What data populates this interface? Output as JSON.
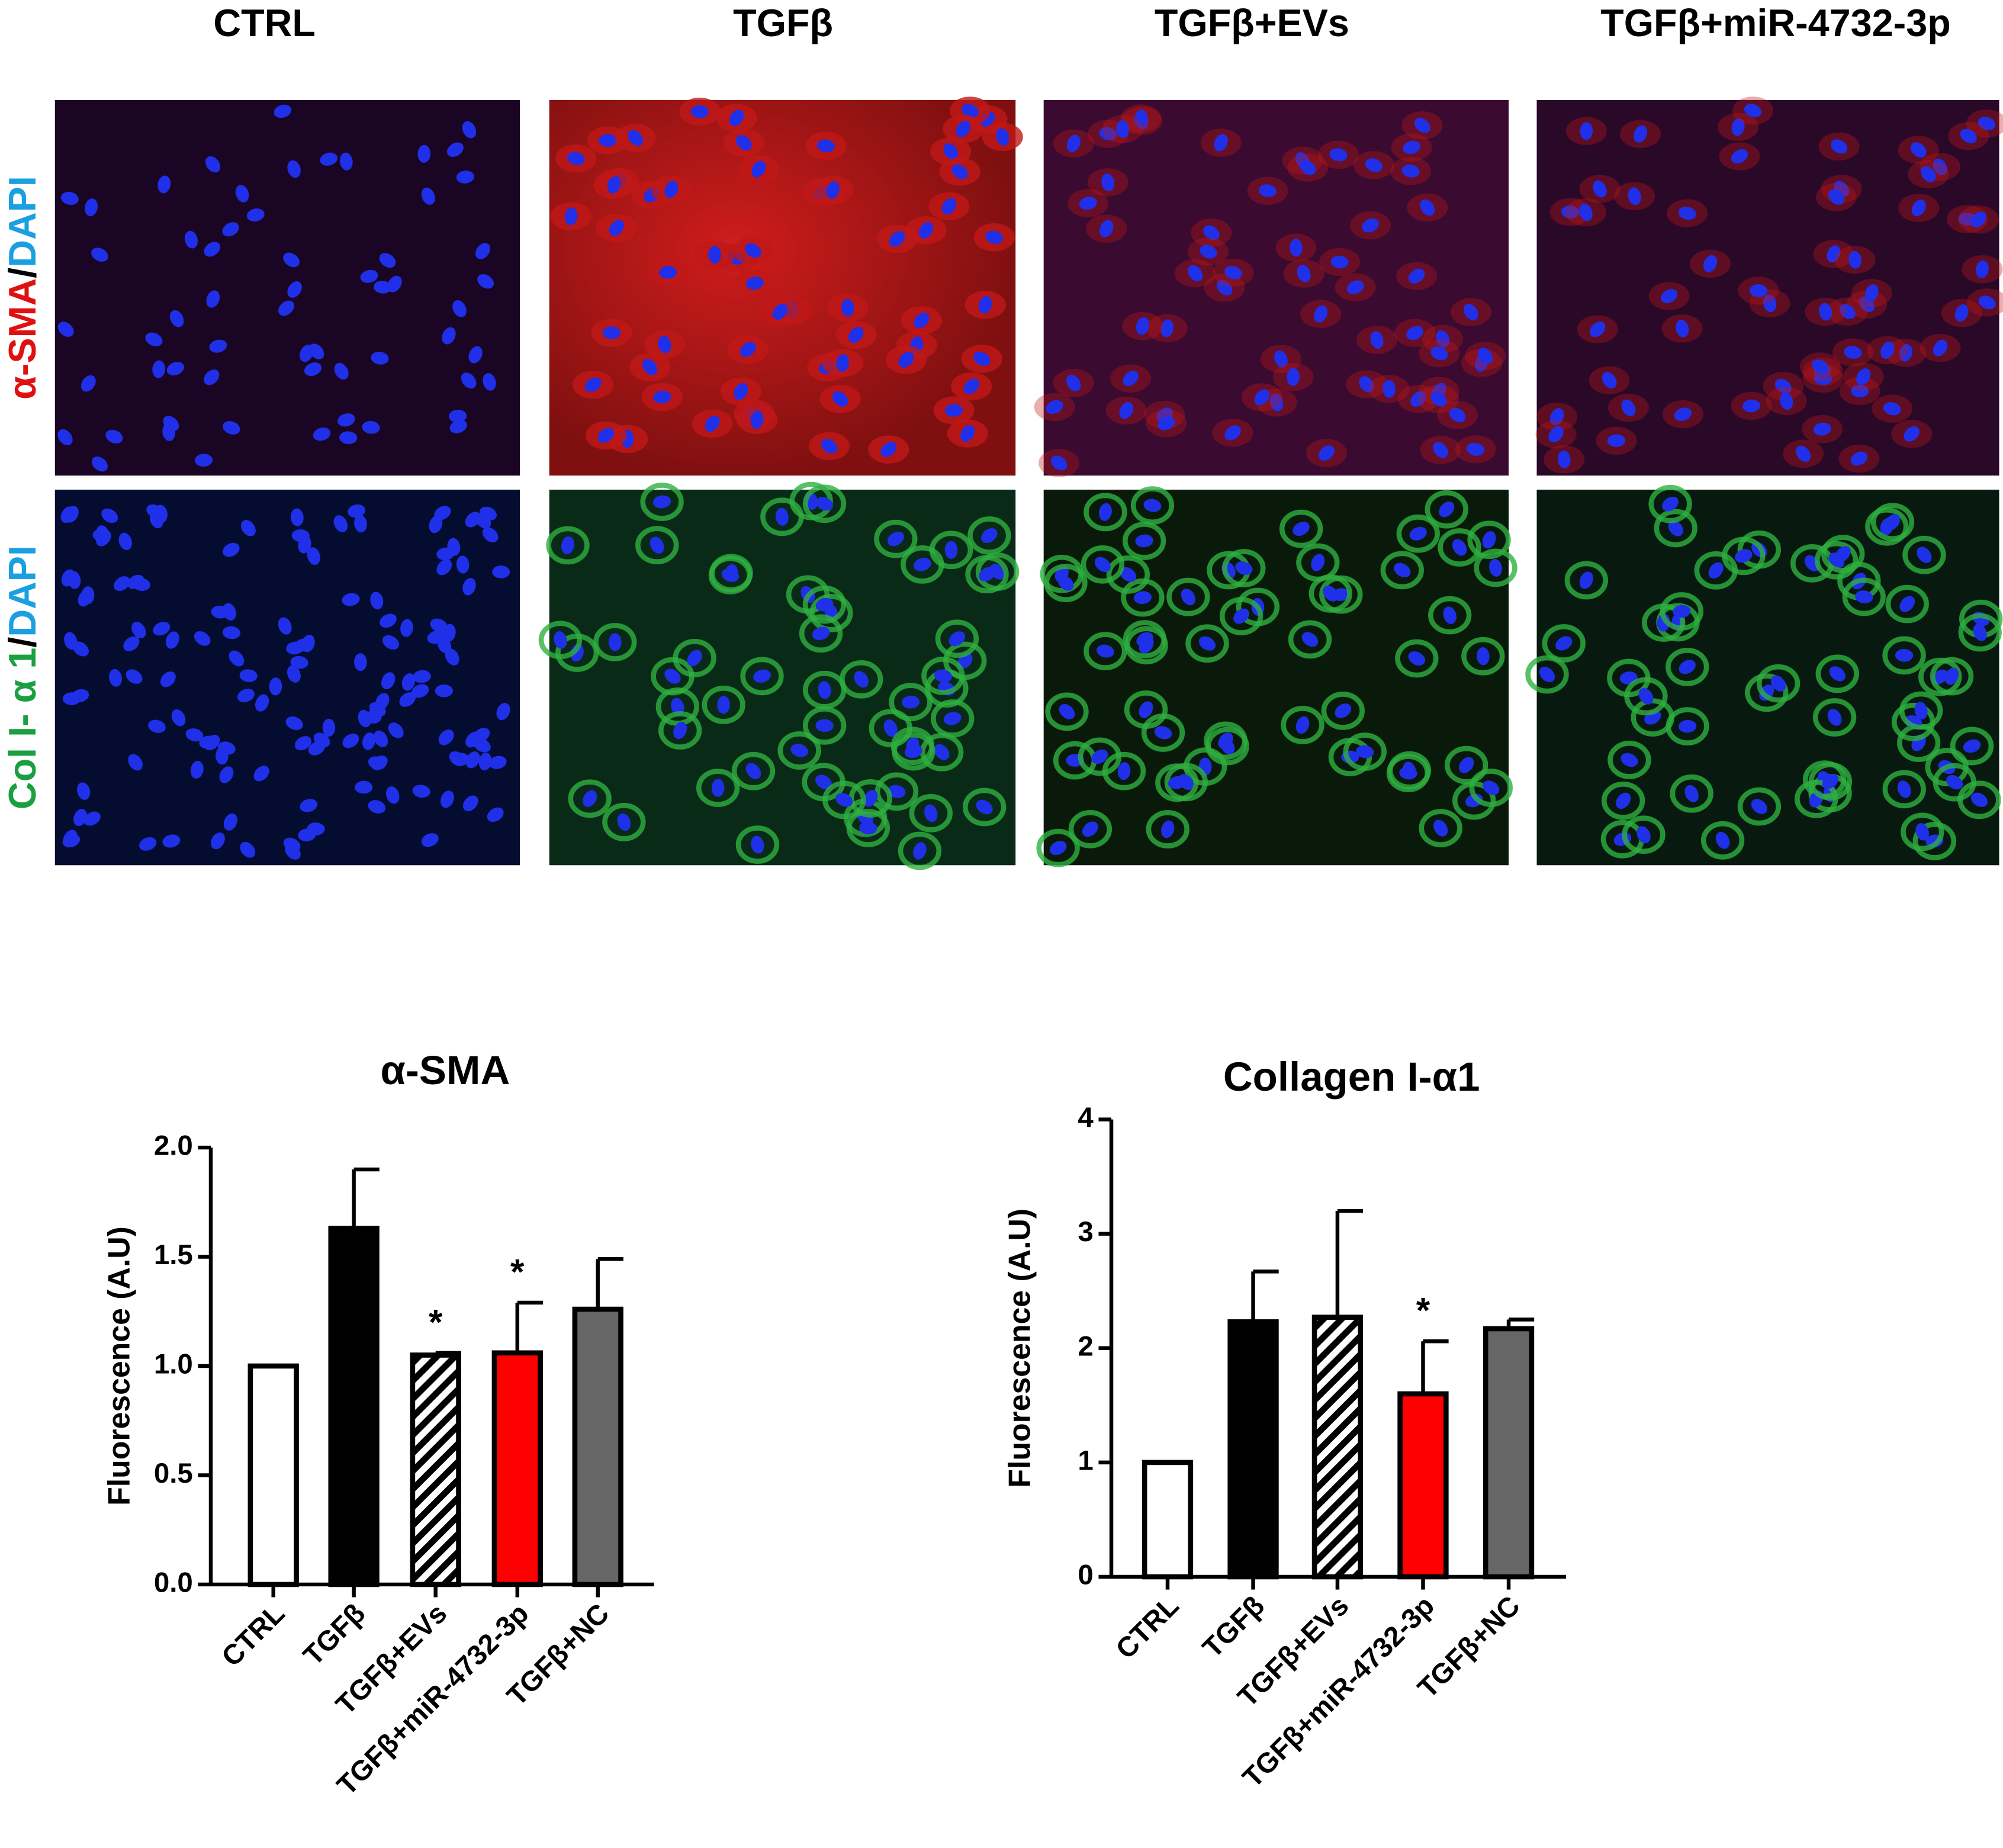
{
  "panel": {
    "columns": [
      "CTRL",
      "TGFβ",
      "TGFβ+EVs",
      "TGFβ+miR-4732-3p"
    ],
    "rows": [
      [
        "α-SMA",
        "/",
        "DAPI"
      ],
      [
        "Col I- α 1",
        "/",
        "DAPI"
      ]
    ]
  },
  "chart_data": [
    {
      "type": "bar",
      "title": "α-SMA",
      "y_label": "Fluorescence (A.U)",
      "categories": [
        "CTRL",
        "TGFβ",
        "TGFβ+EVs",
        "TGFβ+miR-4732-3p",
        "TGFβ+NC"
      ],
      "values": [
        1.0,
        1.63,
        1.05,
        1.06,
        1.26
      ],
      "errors": [
        null,
        0.27,
        0.01,
        0.23,
        0.23
      ],
      "annotations": [
        null,
        null,
        "*",
        "*",
        null
      ],
      "colors": [
        "#ffffff",
        "#000000",
        "#ffffff",
        "#ff0000",
        "#666666"
      ],
      "hatched": [
        false,
        false,
        true,
        false,
        false
      ],
      "ylim": [
        0,
        2
      ],
      "yticks": [
        {
          "value": 0,
          "label": "0.0"
        },
        0.5,
        {
          "value": 1,
          "label": "1.0"
        },
        1.5,
        {
          "value": 2,
          "label": "2.0"
        }
      ]
    },
    {
      "type": "bar",
      "title": "Collagen I-α1",
      "y_label": "Fluorescence (A.U)",
      "categories": [
        "CTRL",
        "TGFβ",
        "TGFβ+EVs",
        "TGFβ+miR-4732-3p",
        "TGFβ+NC"
      ],
      "values": [
        1.0,
        2.23,
        2.27,
        1.6,
        2.17
      ],
      "errors": [
        null,
        0.44,
        0.93,
        0.46,
        0.08
      ],
      "annotations": [
        null,
        null,
        null,
        "*",
        null
      ],
      "colors": [
        "#ffffff",
        "#000000",
        "#ffffff",
        "#ff0000",
        "#666666"
      ],
      "hatched": [
        false,
        false,
        true,
        false,
        false
      ],
      "ylim": [
        0,
        4
      ],
      "yticks": [
        0,
        1,
        2,
        3,
        4
      ]
    }
  ]
}
